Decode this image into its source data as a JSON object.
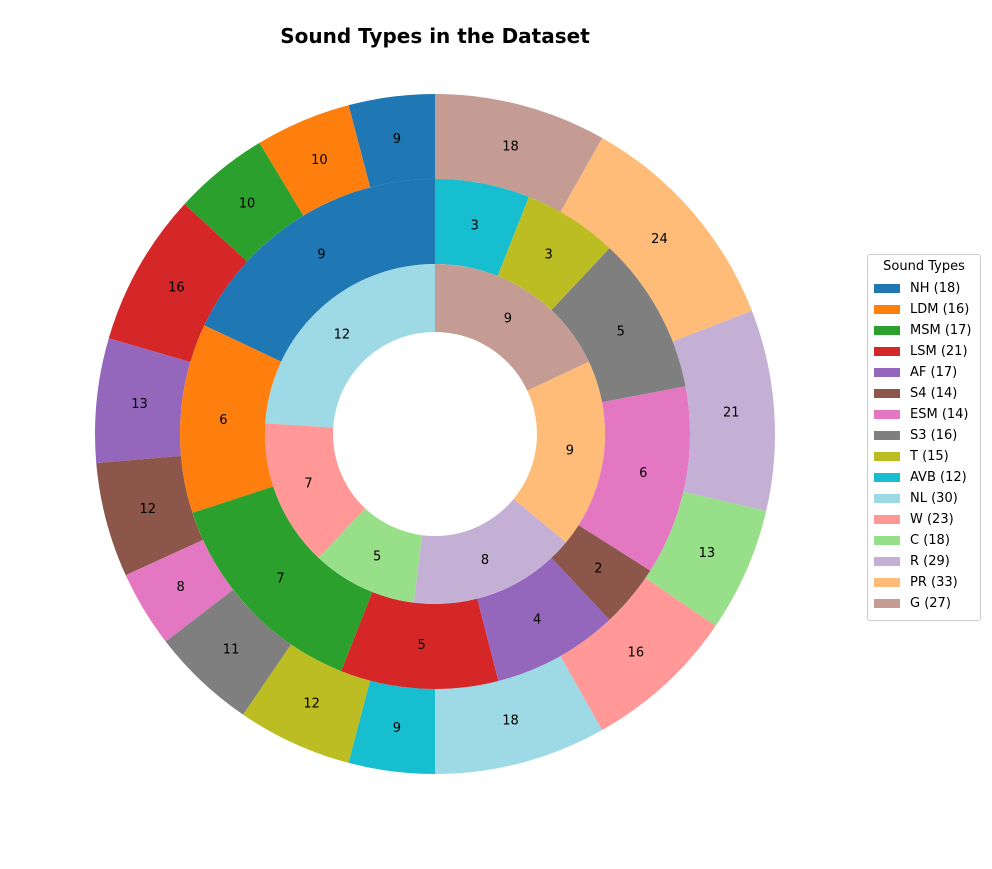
{
  "chart_data": {
    "type": "pie",
    "subtype": "nested-donut",
    "title": "Sound Types in the Dataset",
    "legend": {
      "title": "Sound Types",
      "placement": "right",
      "entries": [
        "NH (18)",
        "LDM (16)",
        "MSM (17)",
        "LSM (21)",
        "AF (17)",
        "S4 (14)",
        "ESM (14)",
        "S3 (16)",
        "T (15)",
        "AVB (12)",
        "NL (30)",
        "W (23)",
        "C (18)",
        "R (29)",
        "PR (33)",
        "G (27)"
      ]
    },
    "categories": [
      "NH",
      "LDM",
      "MSM",
      "LSM",
      "AF",
      "S4",
      "ESM",
      "S3",
      "T",
      "AVB",
      "NL",
      "W",
      "C",
      "R",
      "PR",
      "G"
    ],
    "colors": [
      "#1f77b4",
      "#ff7f0e",
      "#2ca02c",
      "#d62728",
      "#9467bd",
      "#8c564b",
      "#e377c2",
      "#7f7f7f",
      "#bcbd22",
      "#17becf",
      "#9edae5",
      "#ff9896",
      "#98df8a",
      "#c5b0d5",
      "#ffbb78",
      "#c49c94"
    ],
    "rings": [
      {
        "ring": "outer",
        "wedges": [
          {
            "category": "NH",
            "value": 9
          },
          {
            "category": "LDM",
            "value": 10
          },
          {
            "category": "MSM",
            "value": 10
          },
          {
            "category": "LSM",
            "value": 16
          },
          {
            "category": "AF",
            "value": 13
          },
          {
            "category": "S4",
            "value": 12
          },
          {
            "category": "ESM",
            "value": 8
          },
          {
            "category": "S3",
            "value": 11
          },
          {
            "category": "T",
            "value": 12
          },
          {
            "category": "AVB",
            "value": 9
          },
          {
            "category": "NL",
            "value": 18
          },
          {
            "category": "W",
            "value": 16
          },
          {
            "category": "C",
            "value": 13
          },
          {
            "category": "R",
            "value": 21
          },
          {
            "category": "PR",
            "value": 24
          },
          {
            "category": "G",
            "value": 18
          }
        ]
      },
      {
        "ring": "middle",
        "wedges": [
          {
            "category": "NH",
            "value": 9
          },
          {
            "category": "LDM",
            "value": 6
          },
          {
            "category": "MSM",
            "value": 7
          },
          {
            "category": "LSM",
            "value": 5
          },
          {
            "category": "AF",
            "value": 4
          },
          {
            "category": "S4",
            "value": 2
          },
          {
            "category": "ESM",
            "value": 6
          },
          {
            "category": "S3",
            "value": 5
          },
          {
            "category": "T",
            "value": 3
          },
          {
            "category": "AVB",
            "value": 3
          }
        ]
      },
      {
        "ring": "inner",
        "wedges": [
          {
            "category": "NL",
            "value": 12
          },
          {
            "category": "W",
            "value": 7
          },
          {
            "category": "C",
            "value": 5
          },
          {
            "category": "R",
            "value": 8
          },
          {
            "category": "PR",
            "value": 9
          },
          {
            "category": "G",
            "value": 9
          }
        ]
      }
    ]
  }
}
